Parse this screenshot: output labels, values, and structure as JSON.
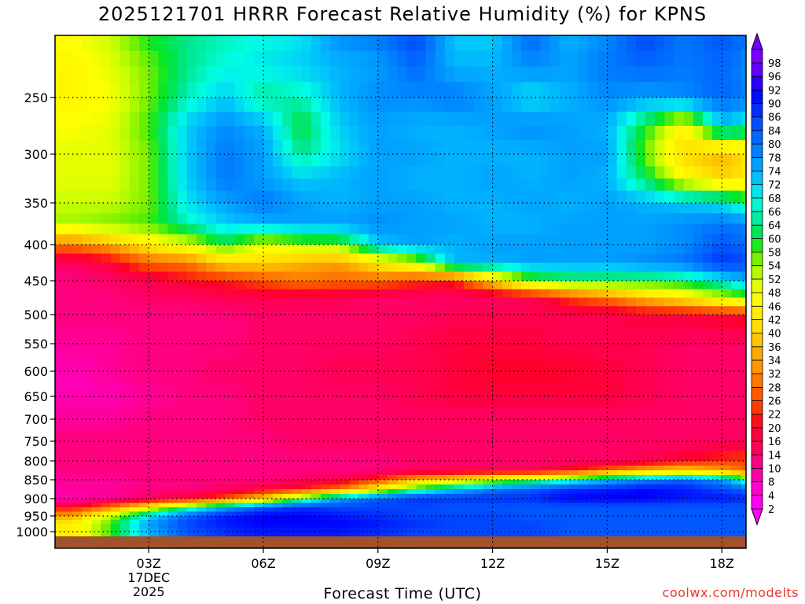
{
  "title": "2025121701 HRRR Forecast Relative Humidity (%) for KPNS",
  "watermark": "coolwx.com/modelts",
  "chart_data": {
    "type": "heatmap",
    "title": "2025121701 HRRR Forecast Relative Humidity (%) for KPNS",
    "xlabel": "Forecast Time (UTC)",
    "ylabel": "",
    "x_unit": "forecast hour from 2025121701",
    "x_range": [
      0,
      18
    ],
    "x_ticks": [
      {
        "x": 2,
        "label": "03Z"
      },
      {
        "x": 5,
        "label": "06Z"
      },
      {
        "x": 8,
        "label": "09Z"
      },
      {
        "x": 11,
        "label": "12Z"
      },
      {
        "x": 14,
        "label": "15Z"
      },
      {
        "x": 17,
        "label": "18Z"
      }
    ],
    "date_label": [
      "17DEC",
      "2025"
    ],
    "y_ticks": [
      250,
      300,
      350,
      400,
      450,
      500,
      550,
      600,
      650,
      700,
      750,
      800,
      850,
      900,
      950,
      1000
    ],
    "y_range": [
      200,
      1013
    ],
    "grid": true,
    "legend": "colorbar-right",
    "colorbar_levels": [
      2,
      4,
      8,
      10,
      14,
      16,
      20,
      22,
      26,
      28,
      32,
      34,
      36,
      40,
      42,
      46,
      48,
      52,
      54,
      58,
      60,
      64,
      66,
      68,
      72,
      74,
      78,
      80,
      84,
      86,
      90,
      92,
      96,
      98
    ],
    "ground_color": "#a0522d",
    "levels": [
      200,
      225,
      250,
      275,
      300,
      325,
      350,
      375,
      400,
      425,
      450,
      475,
      500,
      550,
      600,
      650,
      700,
      750,
      800,
      825,
      850,
      875,
      900,
      925,
      950,
      975,
      1000
    ],
    "values": [
      [
        48,
        52,
        60,
        64,
        66,
        68,
        70,
        78,
        80,
        86,
        72,
        72,
        82,
        74,
        78,
        86,
        80,
        84,
        80
      ],
      [
        46,
        50,
        56,
        64,
        68,
        70,
        72,
        74,
        76,
        82,
        74,
        74,
        78,
        76,
        80,
        82,
        80,
        82,
        76
      ],
      [
        46,
        48,
        56,
        66,
        72,
        64,
        66,
        74,
        78,
        78,
        80,
        76,
        70,
        74,
        78,
        76,
        78,
        82,
        78
      ],
      [
        48,
        50,
        58,
        72,
        78,
        74,
        60,
        72,
        76,
        74,
        74,
        76,
        78,
        76,
        74,
        60,
        46,
        72,
        66
      ],
      [
        50,
        50,
        56,
        72,
        80,
        76,
        64,
        70,
        76,
        76,
        74,
        74,
        74,
        76,
        76,
        56,
        40,
        36,
        44
      ],
      [
        50,
        50,
        56,
        72,
        80,
        76,
        72,
        74,
        76,
        74,
        74,
        76,
        74,
        76,
        74,
        62,
        48,
        40,
        44
      ],
      [
        52,
        52,
        56,
        70,
        76,
        80,
        76,
        74,
        76,
        76,
        74,
        74,
        76,
        74,
        76,
        74,
        72,
        70,
        60
      ],
      [
        54,
        56,
        58,
        66,
        72,
        74,
        76,
        76,
        78,
        76,
        76,
        74,
        74,
        76,
        76,
        76,
        78,
        80,
        78
      ],
      [
        30,
        36,
        44,
        50,
        60,
        50,
        54,
        56,
        72,
        76,
        74,
        76,
        76,
        76,
        76,
        76,
        78,
        84,
        80
      ],
      [
        14,
        18,
        28,
        30,
        40,
        40,
        36,
        34,
        44,
        52,
        74,
        74,
        76,
        76,
        76,
        78,
        80,
        88,
        84
      ],
      [
        12,
        14,
        16,
        20,
        22,
        26,
        30,
        28,
        28,
        24,
        22,
        40,
        56,
        60,
        60,
        60,
        62,
        68,
        78
      ],
      [
        12,
        12,
        14,
        14,
        16,
        16,
        16,
        16,
        14,
        14,
        14,
        14,
        16,
        24,
        30,
        38,
        44,
        52,
        58
      ],
      [
        12,
        12,
        12,
        12,
        12,
        14,
        14,
        14,
        14,
        14,
        16,
        16,
        16,
        16,
        16,
        18,
        18,
        20,
        22
      ],
      [
        10,
        10,
        12,
        12,
        12,
        14,
        14,
        14,
        14,
        16,
        18,
        18,
        18,
        16,
        16,
        16,
        14,
        14,
        14
      ],
      [
        8,
        10,
        12,
        12,
        14,
        14,
        14,
        16,
        16,
        16,
        18,
        20,
        20,
        20,
        18,
        16,
        14,
        14,
        14
      ],
      [
        8,
        8,
        10,
        12,
        12,
        14,
        14,
        14,
        14,
        16,
        18,
        18,
        18,
        18,
        18,
        16,
        14,
        14,
        14
      ],
      [
        10,
        10,
        12,
        12,
        12,
        14,
        14,
        14,
        14,
        14,
        14,
        14,
        14,
        14,
        14,
        14,
        14,
        14,
        14
      ],
      [
        12,
        12,
        12,
        12,
        12,
        12,
        14,
        14,
        14,
        14,
        14,
        14,
        14,
        14,
        14,
        14,
        14,
        14,
        16
      ],
      [
        12,
        12,
        12,
        12,
        12,
        12,
        12,
        12,
        12,
        14,
        14,
        14,
        14,
        14,
        14,
        16,
        20,
        24,
        26
      ],
      [
        12,
        12,
        12,
        12,
        12,
        12,
        12,
        12,
        12,
        14,
        14,
        14,
        14,
        20,
        28,
        36,
        40,
        34,
        24
      ],
      [
        10,
        10,
        12,
        12,
        12,
        12,
        14,
        16,
        24,
        36,
        42,
        50,
        56,
        64,
        72,
        78,
        82,
        76,
        56
      ],
      [
        10,
        10,
        12,
        12,
        14,
        18,
        22,
        30,
        46,
        62,
        72,
        80,
        84,
        88,
        90,
        92,
        90,
        86,
        80
      ],
      [
        8,
        10,
        14,
        18,
        26,
        40,
        60,
        76,
        84,
        88,
        88,
        88,
        88,
        92,
        92,
        92,
        90,
        90,
        88
      ],
      [
        20,
        30,
        46,
        62,
        74,
        84,
        88,
        86,
        86,
        86,
        84,
        84,
        84,
        84,
        84,
        84,
        84,
        84,
        84
      ],
      [
        34,
        52,
        70,
        82,
        90,
        92,
        92,
        90,
        88,
        86,
        86,
        86,
        84,
        84,
        84,
        84,
        84,
        84,
        84
      ],
      [
        44,
        58,
        76,
        86,
        90,
        92,
        92,
        92,
        90,
        88,
        86,
        86,
        86,
        84,
        84,
        84,
        84,
        84,
        84
      ],
      [
        44,
        58,
        74,
        84,
        88,
        90,
        90,
        90,
        88,
        86,
        86,
        86,
        86,
        84,
        84,
        84,
        84,
        84,
        84
      ]
    ]
  }
}
